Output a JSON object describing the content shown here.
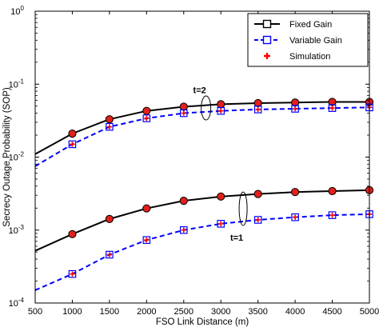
{
  "chart_data": {
    "type": "line",
    "xlabel": "FSO Link Distance (m)",
    "ylabel": "Secrecy Outage Probability (SOP)",
    "xlim": [
      500,
      5000
    ],
    "ylim": [
      0.0001,
      1
    ],
    "yscale": "log",
    "x_ticks": [
      500,
      1000,
      1500,
      2000,
      2500,
      3000,
      3500,
      4000,
      4500,
      5000
    ],
    "x_tick_labels": [
      "500",
      "1000",
      "1500",
      "2000",
      "2500",
      "3000",
      "3500",
      "4000",
      "4500",
      "5000"
    ],
    "y_ticks": [
      {
        "value": 0.0001,
        "base": "10",
        "exp": "-4"
      },
      {
        "value": 0.001,
        "base": "10",
        "exp": "-3"
      },
      {
        "value": 0.01,
        "base": "10",
        "exp": "-2"
      },
      {
        "value": 0.1,
        "base": "10",
        "exp": "-1"
      },
      {
        "value": 1,
        "base": "10",
        "exp": "0"
      }
    ],
    "grid": false,
    "legend_position": "top-right",
    "legend": [
      {
        "label": "Fixed Gain",
        "color": "#000000",
        "line": "solid",
        "marker": "square-open"
      },
      {
        "label": "Variable Gain",
        "color": "#0000ff",
        "line": "dashed",
        "marker": "square-open"
      },
      {
        "label": "Simulation",
        "color": "#ff0000",
        "line": "none",
        "marker": "plus"
      }
    ],
    "annotations": [
      {
        "text": "t=2",
        "x": 2800,
        "y": 0.075
      },
      {
        "text": "t=1",
        "x": 3300,
        "y": 0.00072
      }
    ],
    "series": [
      {
        "group": "t=2",
        "style": "fixed",
        "color": "#000000",
        "x": [
          500,
          1000,
          1500,
          2000,
          2500,
          3000,
          3500,
          4000,
          4500,
          5000
        ],
        "y": [
          0.011,
          0.021,
          0.033,
          0.043,
          0.049,
          0.053,
          0.055,
          0.056,
          0.057,
          0.057
        ]
      },
      {
        "group": "t=2",
        "style": "variable",
        "color": "#0000ff",
        "x": [
          500,
          1000,
          1500,
          2000,
          2500,
          3000,
          3500,
          4000,
          4500,
          5000
        ],
        "y": [
          0.0075,
          0.015,
          0.026,
          0.034,
          0.04,
          0.043,
          0.045,
          0.046,
          0.047,
          0.048
        ]
      },
      {
        "group": "t=1",
        "style": "fixed",
        "color": "#000000",
        "x": [
          500,
          1000,
          1500,
          2000,
          2500,
          3000,
          3500,
          4000,
          4500,
          5000
        ],
        "y": [
          0.00052,
          0.00088,
          0.00142,
          0.00198,
          0.00252,
          0.00288,
          0.00312,
          0.00332,
          0.00342,
          0.00352
        ]
      },
      {
        "group": "t=1",
        "style": "variable",
        "color": "#0000ff",
        "x": [
          500,
          1000,
          1500,
          2000,
          2500,
          3000,
          3500,
          4000,
          4500,
          5000
        ],
        "y": [
          0.00015,
          0.00025,
          0.00046,
          0.00073,
          0.001,
          0.00122,
          0.00138,
          0.0015,
          0.0016,
          0.00165
        ]
      }
    ],
    "simulation_series_styles": [
      "fixed",
      "variable"
    ]
  }
}
